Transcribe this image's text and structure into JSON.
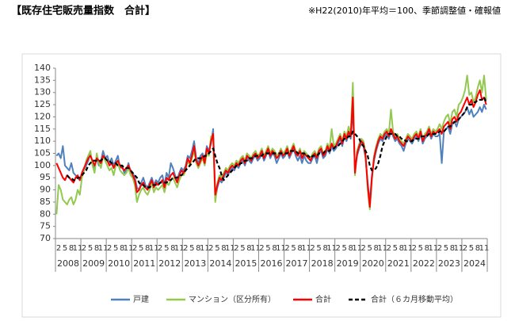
{
  "chart_data": {
    "type": "line",
    "title": "【既存住宅販売量指数　合計】",
    "note": "※H22(2010)年平均＝100、季節調整値・確報値",
    "categories": [
      null,
      "2",
      null,
      null,
      "5",
      null,
      null,
      "8",
      null,
      null,
      "11",
      null,
      null,
      "2",
      null,
      null,
      "5",
      null,
      null,
      "8",
      null,
      null,
      "11",
      null,
      null,
      "2",
      null,
      null,
      "5",
      null,
      null,
      "8",
      null,
      null,
      "11",
      null,
      null,
      "2",
      null,
      null,
      "5",
      null,
      null,
      "8",
      null,
      null,
      "11",
      null,
      null,
      "2",
      null,
      null,
      "5",
      null,
      null,
      "8",
      null,
      null,
      "11",
      null,
      null,
      "2",
      null,
      null,
      "5",
      null,
      null,
      "8",
      null,
      null,
      "11",
      null,
      null,
      "2",
      null,
      null,
      "5",
      null,
      null,
      "8",
      null,
      null,
      "11",
      null,
      null,
      "2",
      null,
      null,
      "5",
      null,
      null,
      "8",
      null,
      null,
      "11",
      null,
      null,
      "2",
      null,
      null,
      "5",
      null,
      null,
      "8",
      null,
      null,
      "11",
      null,
      null,
      "2",
      null,
      null,
      "5",
      null,
      null,
      "8",
      null,
      null,
      "11",
      null,
      null,
      "2",
      null,
      null,
      "5",
      null,
      null,
      "8",
      null,
      null,
      "11",
      null,
      null,
      "2",
      null,
      null,
      "5",
      null,
      null,
      "8",
      null,
      null,
      "11",
      null,
      null,
      "2",
      null,
      null,
      "5",
      null,
      null,
      "8",
      null,
      null,
      "11",
      null,
      null,
      "2",
      null,
      null,
      "5",
      null,
      null,
      "8",
      null,
      null,
      "11",
      null,
      null,
      "2",
      null,
      null,
      "5",
      null,
      null,
      "8",
      null,
      null,
      "11",
      null,
      null,
      "2",
      null,
      null,
      "5",
      null,
      null,
      "8",
      null,
      null,
      "11",
      null,
      null,
      "2",
      null,
      null,
      "5",
      null,
      null,
      "8",
      null,
      null,
      "11",
      null
    ],
    "x_groups": [
      "2008",
      "2009",
      "2010",
      "2011",
      "2012",
      "2013",
      "2014",
      "2015",
      "2016",
      "2017",
      "2018",
      "2019",
      "2020",
      "2021",
      "2022",
      "2023",
      "2024"
    ],
    "ylim": [
      70,
      140
    ],
    "yticks": [
      70,
      75,
      80,
      85,
      90,
      95,
      100,
      105,
      110,
      115,
      120,
      125,
      130,
      135,
      140
    ],
    "grid": false,
    "legend": "bottom",
    "series": [
      {
        "name": "戸建",
        "color": "#4f81bd",
        "values": [
          104,
          105,
          103,
          108,
          100,
          99,
          98,
          101,
          97,
          96,
          95,
          94,
          96,
          98,
          100,
          102,
          105,
          101,
          99,
          103,
          100,
          102,
          106,
          103,
          104,
          101,
          103,
          100,
          102,
          104,
          99,
          100,
          97,
          98,
          101,
          97,
          97,
          95,
          91,
          90,
          93,
          95,
          92,
          91,
          93,
          95,
          92,
          94,
          93,
          95,
          96,
          92,
          97,
          95,
          101,
          99,
          96,
          94,
          97,
          99,
          98,
          100,
          104,
          103,
          106,
          110,
          103,
          101,
          104,
          105,
          102,
          108,
          106,
          109,
          115,
          86,
          91,
          94,
          93,
          95,
          97,
          96,
          98,
          99,
          98,
          100,
          99,
          101,
          102,
          100,
          103,
          102,
          101,
          103,
          104,
          102,
          103,
          105,
          102,
          104,
          106,
          103,
          105,
          104,
          101,
          103,
          105,
          103,
          104,
          106,
          103,
          105,
          107,
          104,
          102,
          104,
          101,
          104,
          102,
          101,
          101,
          103,
          104,
          101,
          105,
          106,
          103,
          104,
          107,
          105,
          108,
          106,
          107,
          109,
          111,
          108,
          112,
          110,
          113,
          111,
          124,
          98,
          104,
          107,
          109,
          108,
          103,
          93,
          85,
          96,
          102,
          106,
          109,
          111,
          110,
          112,
          113,
          111,
          114,
          112,
          110,
          111,
          109,
          108,
          106,
          109,
          111,
          110,
          109,
          111,
          112,
          110,
          113,
          109,
          111,
          112,
          114,
          111,
          113,
          112,
          112,
          113,
          101,
          114,
          115,
          116,
          113,
          117,
          118,
          116,
          119,
          120,
          121,
          122,
          124,
          121,
          123,
          120,
          121,
          122,
          124,
          122,
          125,
          123
        ]
      },
      {
        "name": "マンション（区分所有）",
        "color": "#92c94e",
        "values": [
          80,
          92,
          90,
          86,
          85,
          84,
          86,
          87,
          84,
          86,
          90,
          88,
          95,
          98,
          102,
          104,
          106,
          100,
          97,
          105,
          101,
          99,
          104,
          102,
          100,
          98,
          99,
          96,
          100,
          101,
          98,
          97,
          96,
          97,
          99,
          96,
          95,
          92,
          85,
          88,
          90,
          91,
          89,
          88,
          90,
          93,
          89,
          91,
          90,
          91,
          92,
          89,
          93,
          92,
          94,
          95,
          93,
          91,
          94,
          96,
          96,
          98,
          102,
          100,
          103,
          106,
          101,
          99,
          101,
          103,
          100,
          105,
          104,
          112,
          111,
          85,
          93,
          96,
          95,
          97,
          99,
          98,
          100,
          101,
          100,
          102,
          101,
          103,
          104,
          102,
          105,
          104,
          103,
          105,
          106,
          104,
          105,
          107,
          104,
          106,
          108,
          105,
          107,
          106,
          104,
          105,
          107,
          105,
          106,
          108,
          105,
          107,
          109,
          106,
          105,
          107,
          104,
          106,
          105,
          104,
          103,
          105,
          106,
          104,
          107,
          108,
          105,
          106,
          109,
          107,
          115,
          108,
          109,
          111,
          113,
          110,
          114,
          112,
          116,
          113,
          134,
          96,
          106,
          109,
          111,
          110,
          105,
          90,
          82,
          94,
          104,
          108,
          111,
          113,
          112,
          114,
          115,
          113,
          123,
          114,
          112,
          113,
          111,
          110,
          109,
          111,
          113,
          112,
          111,
          113,
          114,
          112,
          115,
          111,
          113,
          114,
          116,
          113,
          115,
          114,
          115,
          117,
          115,
          118,
          120,
          121,
          117,
          122,
          123,
          120,
          125,
          126,
          128,
          131,
          137,
          129,
          130,
          126,
          128,
          132,
          135,
          130,
          137,
          127
        ]
      },
      {
        "name": "合計",
        "color": "#ff0000",
        "values": [
          101,
          99,
          97,
          95,
          94,
          96,
          95,
          94,
          93,
          95,
          96,
          94,
          97,
          99,
          101,
          103,
          104,
          102,
          100,
          103,
          102,
          101,
          104,
          103,
          102,
          100,
          101,
          99,
          101,
          102,
          100,
          99,
          98,
          99,
          100,
          98,
          96,
          94,
          89,
          90,
          92,
          93,
          91,
          90,
          92,
          94,
          91,
          93,
          92,
          93,
          94,
          91,
          95,
          94,
          96,
          97,
          95,
          93,
          96,
          98,
          97,
          99,
          103,
          101,
          104,
          108,
          102,
          100,
          102,
          104,
          101,
          107,
          105,
          110,
          113,
          88,
          92,
          95,
          94,
          96,
          98,
          97,
          99,
          100,
          99,
          101,
          100,
          102,
          103,
          101,
          104,
          103,
          102,
          104,
          105,
          103,
          104,
          106,
          103,
          105,
          107,
          104,
          106,
          105,
          103,
          104,
          106,
          104,
          105,
          107,
          104,
          106,
          108,
          105,
          104,
          106,
          103,
          105,
          104,
          103,
          102,
          104,
          105,
          103,
          106,
          107,
          104,
          105,
          108,
          106,
          109,
          107,
          108,
          110,
          112,
          109,
          113,
          111,
          114,
          112,
          128,
          97,
          105,
          108,
          110,
          109,
          104,
          92,
          83,
          95,
          103,
          107,
          110,
          112,
          111,
          113,
          114,
          112,
          115,
          113,
          111,
          112,
          110,
          109,
          108,
          110,
          112,
          111,
          110,
          112,
          113,
          111,
          114,
          110,
          112,
          113,
          115,
          112,
          114,
          113,
          114,
          115,
          113,
          116,
          117,
          118,
          115,
          119,
          120,
          118,
          121,
          122,
          124,
          126,
          128,
          125,
          127,
          124,
          126,
          129,
          131,
          127,
          128,
          125
        ]
      },
      {
        "name": "合計（６カ月移動平均）",
        "color": "#000000",
        "dashed": true,
        "values": [
          null,
          null,
          null,
          null,
          null,
          96,
          95,
          95,
          94,
          94,
          95,
          95,
          96,
          97,
          98,
          100,
          101,
          102,
          102,
          102,
          102,
          102,
          103,
          103,
          102,
          102,
          101,
          101,
          101,
          100,
          100,
          100,
          99,
          99,
          99,
          98,
          97,
          96,
          95,
          93,
          92,
          92,
          91,
          91,
          91,
          92,
          92,
          92,
          92,
          93,
          93,
          93,
          93,
          94,
          94,
          95,
          95,
          95,
          96,
          96,
          97,
          98,
          99,
          100,
          101,
          102,
          103,
          103,
          103,
          103,
          104,
          104,
          105,
          106,
          107,
          104,
          101,
          99,
          96,
          94,
          95,
          96,
          97,
          98,
          99,
          100,
          100,
          101,
          101,
          102,
          102,
          103,
          103,
          103,
          104,
          104,
          104,
          104,
          105,
          105,
          105,
          105,
          105,
          105,
          105,
          105,
          105,
          105,
          105,
          105,
          106,
          106,
          106,
          106,
          105,
          105,
          105,
          105,
          104,
          104,
          103,
          104,
          104,
          104,
          105,
          105,
          105,
          106,
          106,
          106,
          107,
          107,
          108,
          108,
          109,
          110,
          111,
          111,
          112,
          112,
          114,
          113,
          112,
          111,
          109,
          108,
          106,
          104,
          100,
          98,
          98,
          99,
          101,
          104,
          108,
          110,
          112,
          113,
          113,
          113,
          113,
          112,
          112,
          111,
          111,
          110,
          110,
          110,
          110,
          111,
          111,
          111,
          112,
          112,
          112,
          112,
          113,
          113,
          113,
          113,
          113,
          114,
          114,
          114,
          115,
          116,
          116,
          117,
          118,
          118,
          119,
          120,
          121,
          122,
          124,
          125,
          125,
          126,
          126,
          127,
          127,
          127,
          128,
          126
        ]
      }
    ]
  }
}
